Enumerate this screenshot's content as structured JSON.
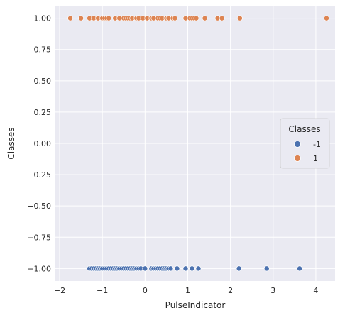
{
  "chart_data": {
    "type": "scatter",
    "xlabel": "PulseIndicator",
    "ylabel": "Classes",
    "xlim": [
      -2.1,
      4.45
    ],
    "ylim": [
      -1.1,
      1.1
    ],
    "xticks": [
      -2,
      -1,
      0,
      1,
      2,
      3,
      4
    ],
    "xtick_labels": [
      "−2",
      "−1",
      "0",
      "1",
      "2",
      "3",
      "4"
    ],
    "yticks": [
      -1.0,
      -0.75,
      -0.5,
      -0.25,
      0.0,
      0.25,
      0.5,
      0.75,
      1.0
    ],
    "ytick_labels": [
      "−1.00",
      "−0.75",
      "−0.50",
      "−0.25",
      "0.00",
      "0.25",
      "0.50",
      "0.75",
      "1.00"
    ],
    "grid": true,
    "legend": {
      "title": "Classes",
      "placement": "center-right",
      "entries": [
        {
          "label": "-1",
          "color": "#4c72b0"
        },
        {
          "label": "1",
          "color": "#dd8452"
        }
      ]
    },
    "series": [
      {
        "name": "-1",
        "color": "#4c72b0",
        "y": -1,
        "x": [
          -1.3,
          -1.25,
          -1.2,
          -1.15,
          -1.1,
          -1.05,
          -1.0,
          -0.95,
          -0.9,
          -0.85,
          -0.8,
          -0.75,
          -0.7,
          -0.65,
          -0.6,
          -0.55,
          -0.5,
          -0.45,
          -0.4,
          -0.35,
          -0.3,
          -0.25,
          -0.2,
          -0.15,
          -0.1,
          0.0,
          0.15,
          0.2,
          0.25,
          0.3,
          0.35,
          0.4,
          0.45,
          0.5,
          0.55,
          0.6,
          0.75,
          0.95,
          1.1,
          1.25,
          2.2,
          2.85,
          3.62
        ]
      },
      {
        "name": "1",
        "color": "#dd8452",
        "y": 1,
        "x": [
          -1.75,
          -1.5,
          -1.3,
          -1.2,
          -1.1,
          -1.0,
          -0.95,
          -0.9,
          -0.85,
          -0.7,
          -0.6,
          -0.5,
          -0.45,
          -0.4,
          -0.35,
          -0.3,
          -0.2,
          -0.15,
          -0.05,
          0.05,
          0.15,
          0.2,
          0.3,
          0.35,
          0.4,
          0.5,
          0.55,
          0.65,
          0.7,
          0.95,
          1.05,
          1.1,
          1.15,
          1.2,
          1.4,
          1.7,
          1.8,
          2.22,
          4.25
        ]
      }
    ]
  }
}
